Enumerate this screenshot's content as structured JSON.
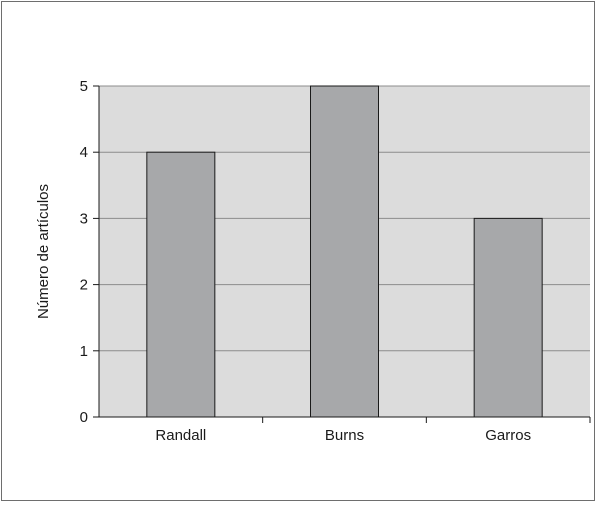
{
  "chart_data": {
    "type": "bar",
    "categories": [
      "Randall",
      "Burns",
      "Garros"
    ],
    "values": [
      4,
      5,
      3
    ],
    "title": "",
    "xlabel": "",
    "ylabel": "Número de artículos",
    "ylim": [
      0,
      5
    ],
    "yticks": [
      0,
      1,
      2,
      3,
      4,
      5
    ],
    "grid": true,
    "legend": "none",
    "colors": {
      "plot_background": "#dcdcdc",
      "bar_fill": "#a7a8aa",
      "bar_stroke": "#1a1a1a",
      "gridline": "#8c8c8c",
      "axis": "#1a1a1a"
    }
  }
}
